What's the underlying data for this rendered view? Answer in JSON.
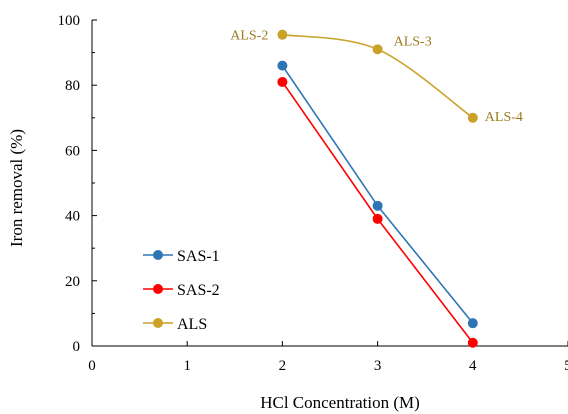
{
  "chart_data": {
    "type": "line",
    "xlabel": "HCl Concentration (M)",
    "ylabel": "Iron removal (%)",
    "xlim": [
      0,
      5
    ],
    "ylim": [
      0,
      100
    ],
    "xticks": [
      0,
      1,
      2,
      3,
      4,
      5
    ],
    "yticks": [
      0,
      20,
      40,
      60,
      80,
      100
    ],
    "xtick_labels": [
      "0",
      "1",
      "2",
      "3",
      "4",
      "5"
    ],
    "ytick_labels": [
      "0",
      "20",
      "40",
      "60",
      "80",
      "100"
    ],
    "grid": false,
    "legend_position": "bottom-left",
    "series": [
      {
        "name": "SAS-1",
        "color": "#2E75B6",
        "smooth": false,
        "points": [
          {
            "x": 2,
            "y": 86
          },
          {
            "x": 3,
            "y": 43
          },
          {
            "x": 4,
            "y": 7
          }
        ]
      },
      {
        "name": "SAS-2",
        "color": "#FF0000",
        "smooth": false,
        "points": [
          {
            "x": 2,
            "y": 81
          },
          {
            "x": 3,
            "y": 39
          },
          {
            "x": 4,
            "y": 1
          }
        ]
      },
      {
        "name": "ALS",
        "color": "#C9A227",
        "smooth": true,
        "points": [
          {
            "x": 2,
            "y": 95.5
          },
          {
            "x": 3,
            "y": 91
          },
          {
            "x": 4,
            "y": 70
          }
        ]
      }
    ],
    "annotations": [
      {
        "text": "ALS-2",
        "x": 2,
        "y": 95.5,
        "side": "left"
      },
      {
        "text": "ALS-3",
        "x": 3,
        "y": 91,
        "side": "right-up"
      },
      {
        "text": "ALS-4",
        "x": 4,
        "y": 70,
        "side": "right"
      }
    ],
    "annotation_color": "#9C7A1C"
  }
}
